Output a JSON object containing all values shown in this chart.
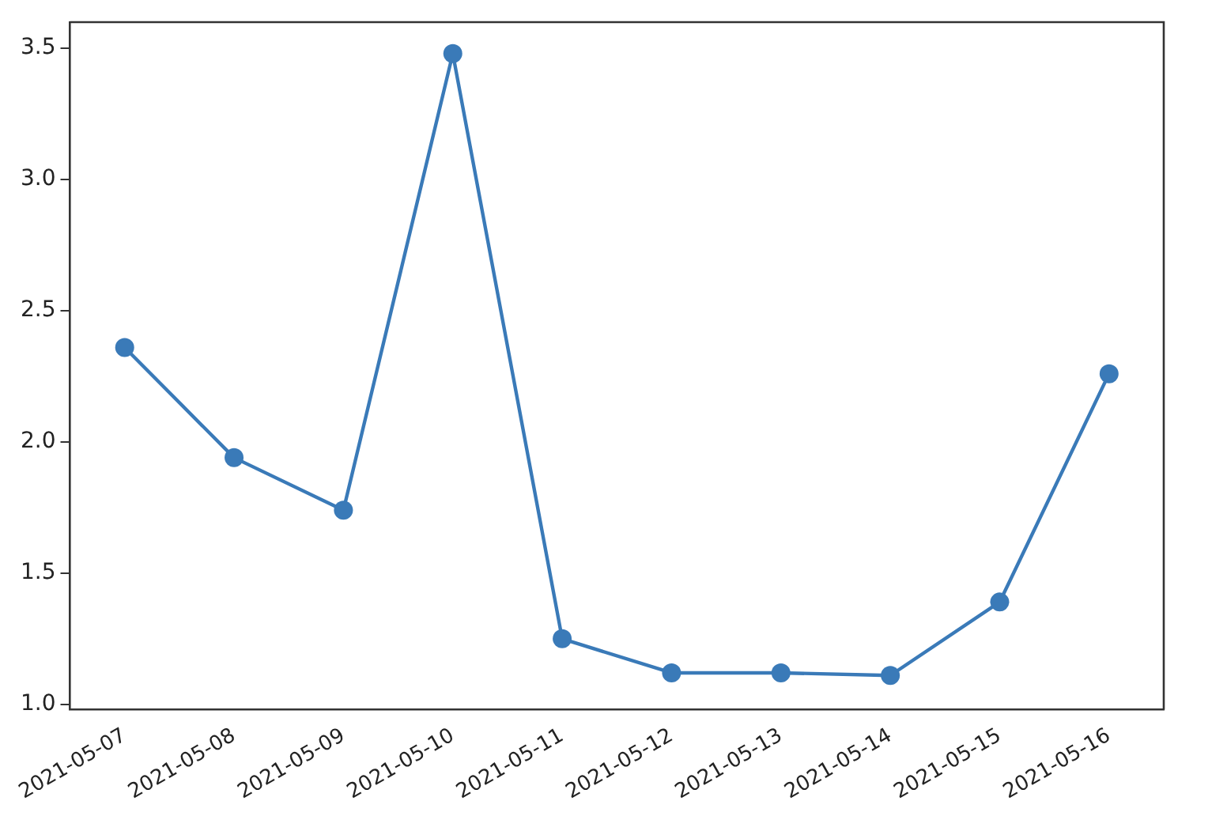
{
  "chart_data": {
    "type": "line",
    "categories": [
      "2021-05-07",
      "2021-05-08",
      "2021-05-09",
      "2021-05-10",
      "2021-05-11",
      "2021-05-12",
      "2021-05-13",
      "2021-05-14",
      "2021-05-15",
      "2021-05-16"
    ],
    "series": [
      {
        "color": "#3a7ab8",
        "values": [
          2.36,
          1.94,
          1.74,
          3.48,
          1.25,
          1.12,
          1.12,
          1.11,
          1.39,
          2.26
        ]
      }
    ],
    "ylim": [
      0.98,
      3.6
    ],
    "yticks": [
      {
        "value": 1.0,
        "label": "1.0"
      },
      {
        "value": 1.5,
        "label": "1.5"
      },
      {
        "value": 2.0,
        "label": "2.0"
      },
      {
        "value": 2.5,
        "label": "2.5"
      },
      {
        "value": 3.0,
        "label": "3.0"
      },
      {
        "value": 3.5,
        "label": "3.5"
      }
    ],
    "grid": false,
    "legend": false,
    "marker": "circle",
    "line_style": "solid"
  }
}
